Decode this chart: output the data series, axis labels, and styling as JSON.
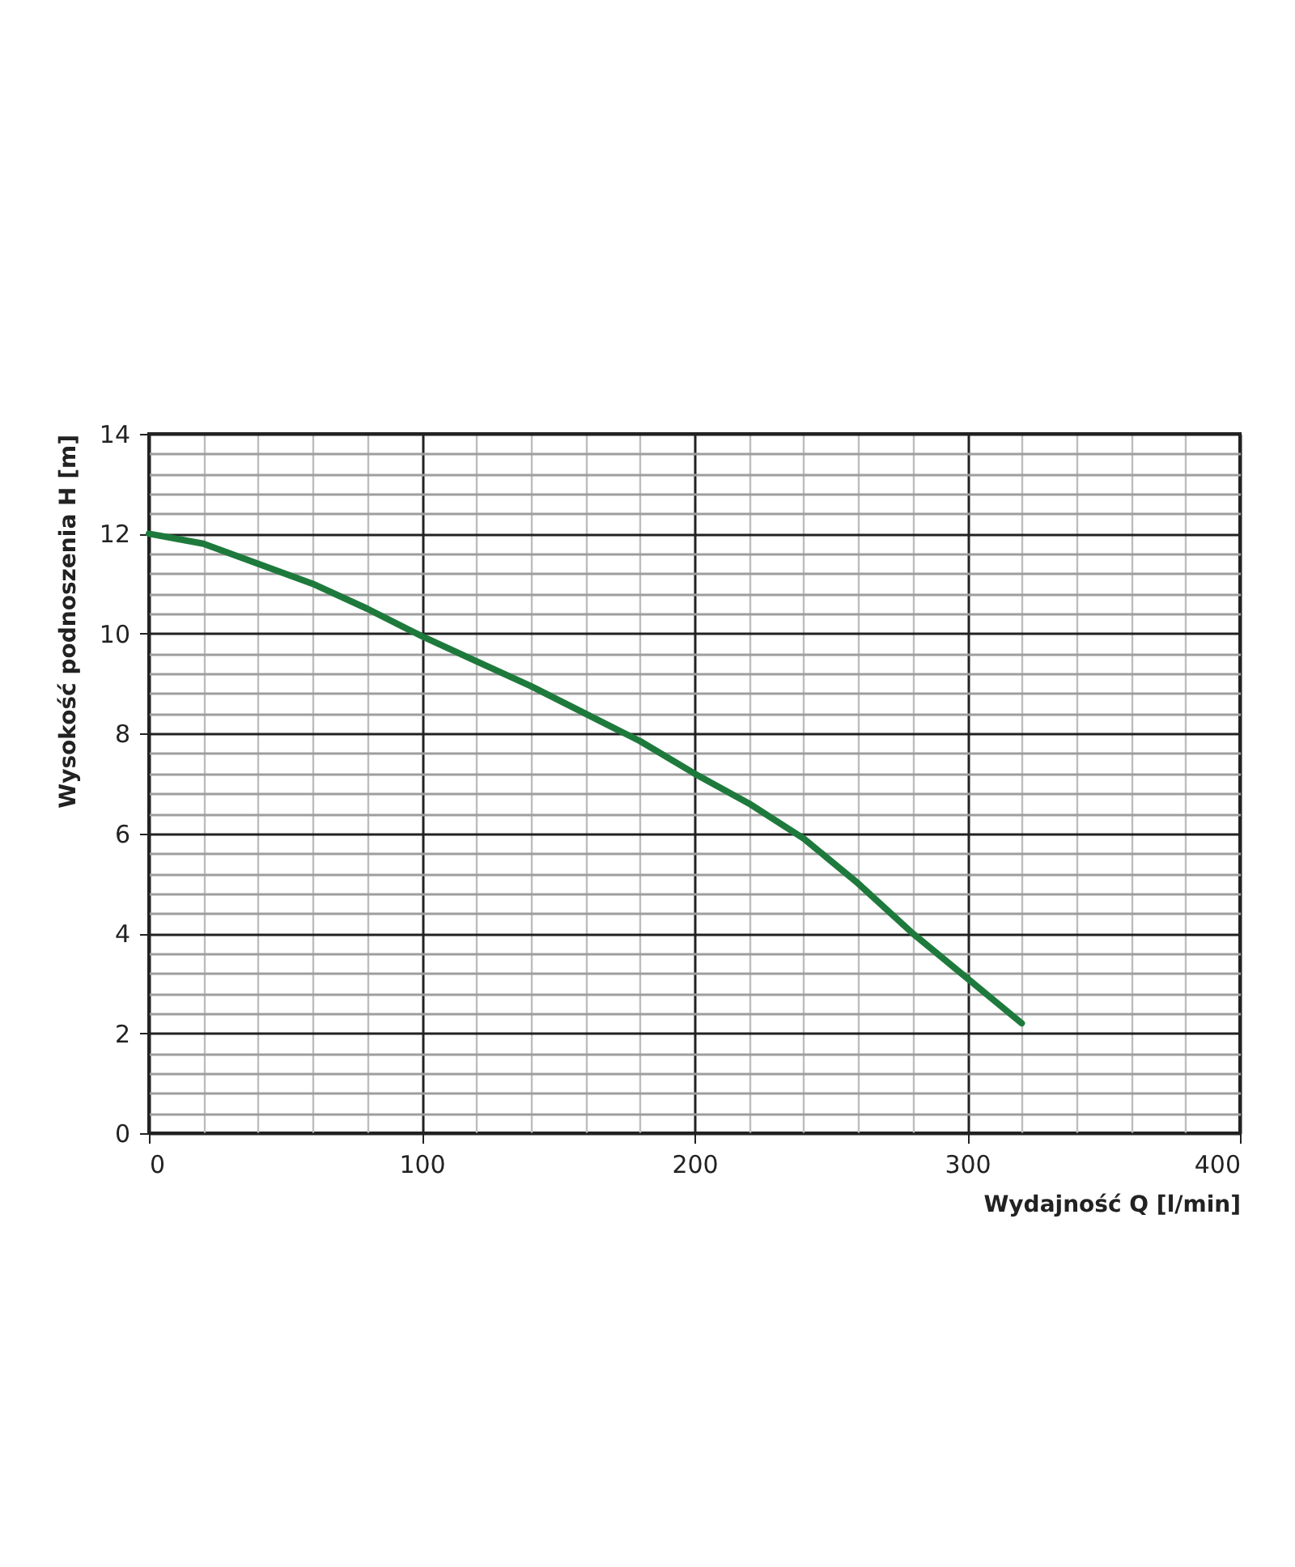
{
  "chart_data": {
    "type": "line",
    "xlabel": "Wydajność Q [l/min]",
    "ylabel": "Wysokość podnoszenia H [m]",
    "x": [
      0,
      20,
      40,
      60,
      80,
      100,
      120,
      140,
      160,
      180,
      200,
      220,
      240,
      260,
      280,
      300,
      320
    ],
    "series": [
      {
        "color": "#1e7a3c",
        "values": [
          12,
          11.8,
          11.4,
          11.0,
          10.5,
          9.95,
          9.45,
          8.95,
          8.4,
          7.85,
          7.2,
          6.6,
          5.9,
          5.0,
          4.0,
          3.1,
          2.2
        ]
      }
    ],
    "xlim": [
      0,
      400
    ],
    "xticks": [
      0,
      100,
      200,
      300,
      400
    ],
    "ylim": [
      0,
      14
    ],
    "yticks": [
      0,
      2,
      4,
      6,
      8,
      10,
      12,
      14
    ],
    "grid": true,
    "marker": "none",
    "line_style": "solid",
    "legend": false
  }
}
